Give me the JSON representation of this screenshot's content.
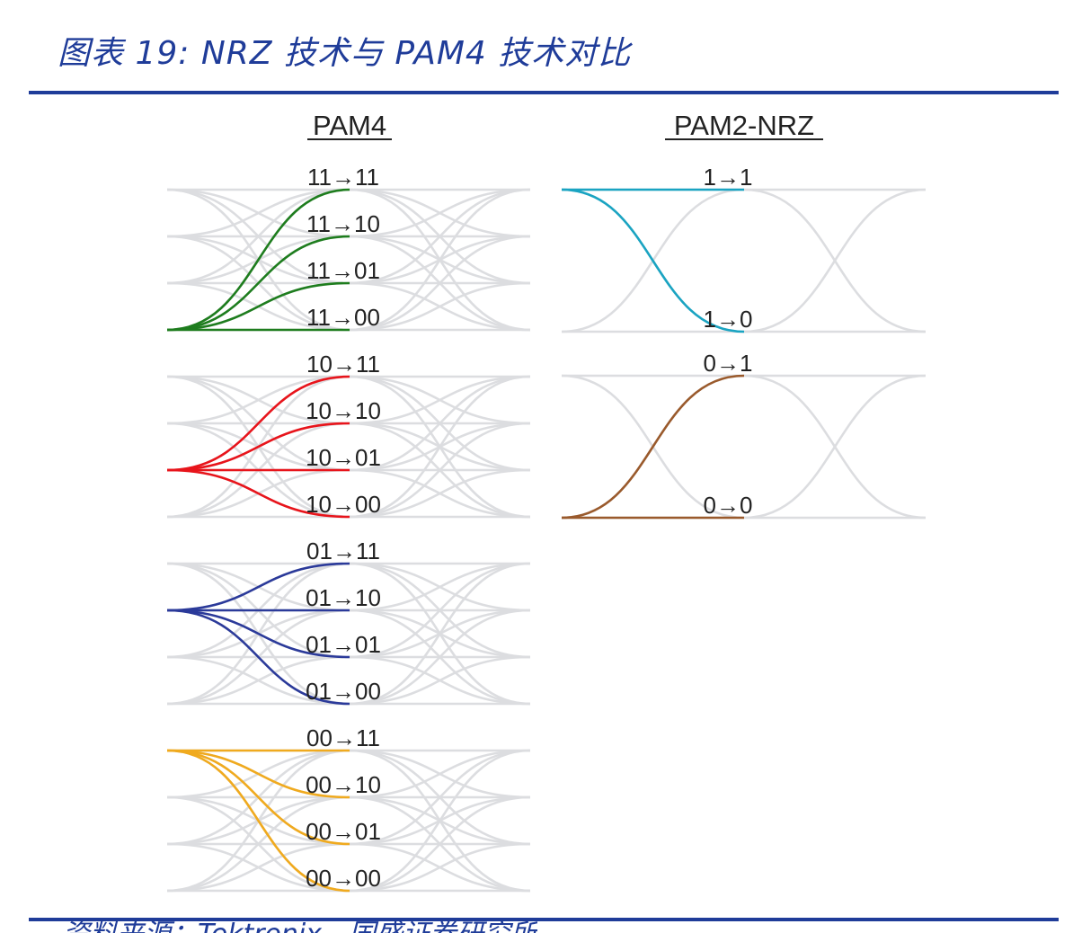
{
  "figure": {
    "title": "图表 19:  NRZ 技术与 PAM4 技术对比",
    "source": "资料来源：Tektronix，国盛证券研究所"
  },
  "colors": {
    "title_blue": "#1f3c99",
    "eye_gray": "#dcdde0",
    "pam4_groups": [
      "#1e7d1e",
      "#e8141b",
      "#2b3a9a",
      "#f0aa1e"
    ],
    "nrz_groups": [
      "#1aa4c2",
      "#9a5a2c"
    ]
  },
  "pam4": {
    "heading": "PAM4",
    "groups": [
      {
        "start": "11",
        "labels": [
          "11→11",
          "11→10",
          "11→01",
          "11→00"
        ]
      },
      {
        "start": "10",
        "labels": [
          "10→11",
          "10→10",
          "10→01",
          "10→00"
        ]
      },
      {
        "start": "01",
        "labels": [
          "01→11",
          "01→10",
          "01→01",
          "01→00"
        ]
      },
      {
        "start": "00",
        "labels": [
          "00→11",
          "00→10",
          "00→01",
          "00→00"
        ]
      }
    ]
  },
  "nrz": {
    "heading": "PAM2-NRZ",
    "groups": [
      {
        "start": "1",
        "labels": [
          "1→1",
          "1→0"
        ]
      },
      {
        "start": "0",
        "labels": [
          "0→1",
          "0→0"
        ]
      }
    ]
  }
}
